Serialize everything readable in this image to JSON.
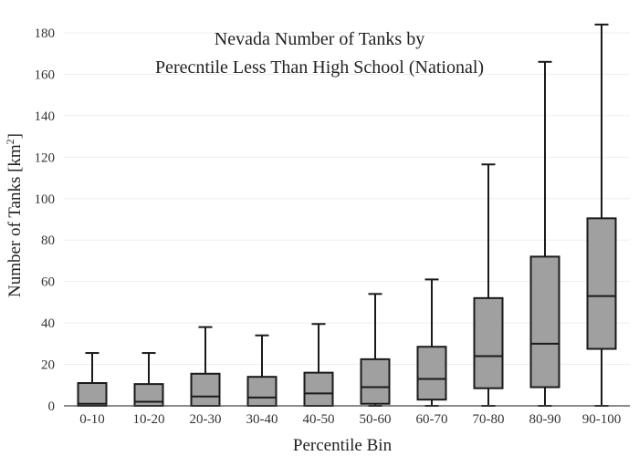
{
  "chart_data": {
    "type": "box",
    "title_lines": [
      "Nevada Number of Tanks by",
      "Perecntile Less Than High School (National)"
    ],
    "xlabel": "Percentile Bin",
    "ylabel": "Number of Tanks  [km",
    "ylabel_sup": "2",
    "ylabel_close": "]",
    "ylim": [
      0,
      184
    ],
    "yticks": [
      0,
      20,
      40,
      60,
      80,
      100,
      120,
      140,
      160,
      180
    ],
    "grid": true,
    "box_fill": "#a0a0a0",
    "categories": [
      "0-10",
      "10-20",
      "20-30",
      "30-40",
      "40-50",
      "50-60",
      "60-70",
      "70-80",
      "80-90",
      "90-100"
    ],
    "boxes": [
      {
        "min": 0,
        "q1": 0,
        "median": 1,
        "q3": 11,
        "max": 25.5
      },
      {
        "min": 0,
        "q1": 0,
        "median": 2,
        "q3": 10.5,
        "max": 25.5
      },
      {
        "min": 0,
        "q1": 0,
        "median": 4.5,
        "q3": 15.5,
        "max": 38
      },
      {
        "min": 0,
        "q1": 0,
        "median": 4,
        "q3": 14,
        "max": 34
      },
      {
        "min": 0,
        "q1": 0,
        "median": 6,
        "q3": 16,
        "max": 39.5
      },
      {
        "min": 0,
        "q1": 1,
        "median": 9,
        "q3": 22.5,
        "max": 54
      },
      {
        "min": 0,
        "q1": 3,
        "median": 13,
        "q3": 28.5,
        "max": 61
      },
      {
        "min": 0,
        "q1": 8.5,
        "median": 24,
        "q3": 52,
        "max": 116.5
      },
      {
        "min": 0,
        "q1": 9,
        "median": 30,
        "q3": 72,
        "max": 166
      },
      {
        "min": 0,
        "q1": 27.5,
        "median": 53,
        "q3": 90.5,
        "max": 184
      }
    ]
  }
}
